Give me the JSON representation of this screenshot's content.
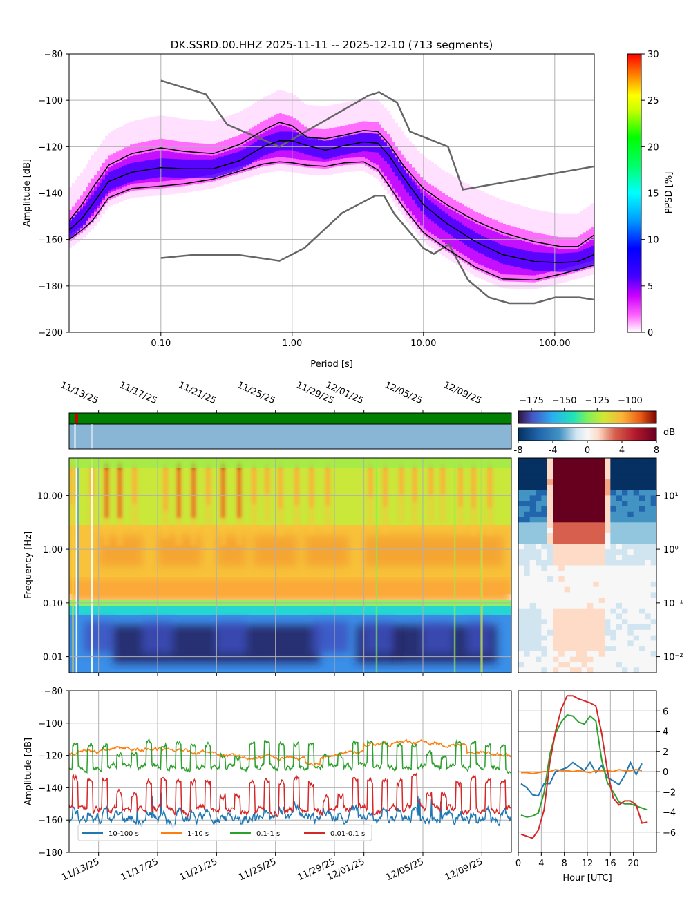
{
  "figure": {
    "title": "DK.SSRD.00.HHZ   2025-11-11 -- 2025-12-10  (713 segments)"
  },
  "chart_data": [
    {
      "id": "ppsd",
      "type": "heatmap",
      "title": "DK.SSRD.00.HHZ   2025-11-11 -- 2025-12-10  (713 segments)",
      "xlabel": "Period [s]",
      "ylabel": "Amplitude [dB]",
      "xscale": "log",
      "xlim": [
        0.02,
        200
      ],
      "ylim": [
        -200,
        -80
      ],
      "xticks": [
        0.1,
        1,
        10,
        100
      ],
      "xticklabels": [
        "0.10",
        "1.00",
        "10.00",
        "100.00"
      ],
      "yticks": [
        -200,
        -180,
        -160,
        -140,
        -120,
        -100,
        -80
      ],
      "yticklabels": [
        "−200",
        "−180",
        "−160",
        "−140",
        "−120",
        "−100",
        "−80"
      ],
      "grid": true,
      "colorbar": {
        "label": "PPSD [%]",
        "range": [
          0,
          30
        ],
        "ticks": [
          0,
          5,
          10,
          15,
          20,
          25,
          30
        ],
        "ticklabels": [
          "0",
          "5",
          "10",
          "15",
          "20",
          "25",
          "30"
        ]
      },
      "curves": {
        "nhnm": {
          "x": [
            0.1,
            0.22,
            0.32,
            0.8,
            3.8,
            4.6,
            6.3,
            7.9,
            15.4,
            20,
            354
          ],
          "y": [
            -91.5,
            -97.4,
            -110.5,
            -120,
            -98,
            -96.5,
            -101,
            -113.5,
            -120,
            -138.5,
            -126
          ]
        },
        "nlnm": {
          "x": [
            0.1,
            0.17,
            0.4,
            0.8,
            1.24,
            2.4,
            4.3,
            5,
            6,
            10,
            12,
            15.6,
            21.9,
            31.6,
            45,
            70,
            101,
            154,
            200
          ],
          "y": [
            -168,
            -166.7,
            -166.7,
            -169.2,
            -163.7,
            -148.6,
            -141.1,
            -141.1,
            -149,
            -163.8,
            -166.2,
            -162.1,
            -177.5,
            -185,
            -187.5,
            -187.5,
            -185,
            -185,
            -186
          ]
        },
        "p90": {
          "x": [
            0.02,
            0.025,
            0.03,
            0.04,
            0.06,
            0.1,
            0.15,
            0.25,
            0.4,
            0.6,
            0.8,
            1.0,
            1.3,
            1.8,
            2.5,
            3.5,
            4.5,
            5.5,
            7,
            10,
            15,
            25,
            40,
            70,
            110,
            150,
            200
          ],
          "y": [
            -152,
            -145,
            -138,
            -128,
            -123,
            -120.5,
            -122,
            -123,
            -119,
            -113,
            -109.5,
            -111,
            -116,
            -116.5,
            -115,
            -113,
            -113.5,
            -119,
            -128,
            -138,
            -145,
            -152,
            -157,
            -161,
            -163,
            -163,
            -158
          ]
        },
        "mean": {
          "x": [
            0.02,
            0.025,
            0.03,
            0.04,
            0.06,
            0.1,
            0.15,
            0.25,
            0.4,
            0.6,
            0.8,
            1.0,
            1.3,
            1.8,
            2.5,
            3.5,
            4.5,
            5.5,
            7,
            10,
            15,
            25,
            40,
            70,
            110,
            150,
            200
          ],
          "y": [
            -156,
            -151,
            -145,
            -135,
            -131,
            -129,
            -129.5,
            -129.5,
            -126,
            -120,
            -117.5,
            -117.5,
            -119.5,
            -121.5,
            -119.5,
            -118,
            -118.5,
            -124,
            -133,
            -145,
            -153,
            -161,
            -166.5,
            -169.5,
            -170,
            -169.5,
            -166.5
          ]
        },
        "p10": {
          "x": [
            0.02,
            0.025,
            0.03,
            0.04,
            0.06,
            0.1,
            0.15,
            0.25,
            0.4,
            0.6,
            0.8,
            1.0,
            1.3,
            1.8,
            2.5,
            3.5,
            4.5,
            5.5,
            7,
            10,
            15,
            25,
            40,
            70,
            110,
            150,
            200
          ],
          "y": [
            -160,
            -156,
            -152,
            -142,
            -138,
            -137,
            -136,
            -134,
            -130.5,
            -127.5,
            -126.5,
            -127,
            -128,
            -128.5,
            -127,
            -126.5,
            -130,
            -137,
            -146,
            -157,
            -164,
            -172,
            -177,
            -177.5,
            -175,
            -173,
            -171
          ]
        }
      }
    },
    {
      "id": "spectrogram",
      "type": "heatmap",
      "ylabel": "Frequency [Hz]",
      "yscale": "log",
      "ylim": [
        0.005,
        50
      ],
      "yticks": [
        10,
        1,
        0.1,
        0.01
      ],
      "yticklabels": [
        "10.00",
        "1.00",
        "0.10",
        "0.01"
      ],
      "time_range": [
        "2025-11-11",
        "2025-12-10"
      ],
      "date_ticks": [
        "11/13/25",
        "11/17/25",
        "11/21/25",
        "11/25/25",
        "11/29/25",
        "12/01/25",
        "12/05/25",
        "12/09/25"
      ],
      "date_tick_days": [
        2,
        6,
        10,
        14,
        18,
        20,
        24,
        28
      ],
      "colorbar": {
        "range": [
          -185,
          -80
        ],
        "ticks": [
          -175,
          -150,
          -125,
          -100
        ],
        "ticklabels": [
          "−175",
          "−150",
          "−125",
          "−100"
        ]
      },
      "data_availability": {
        "available": "#008000",
        "gap": "#cc0000",
        "gaps_days": [
          0.5
        ]
      },
      "segments": {
        "fill": "#8ab6d6",
        "gap_lines_days": [
          0.4,
          1.5
        ]
      }
    },
    {
      "id": "diurnal_diff",
      "type": "heatmap",
      "xlabel": "Hour [UTC]",
      "yscale": "log",
      "xlim": [
        0,
        23
      ],
      "xticks": [
        0,
        4,
        8,
        12,
        16,
        20
      ],
      "xticklabels": [
        "0",
        "4",
        "8",
        "12",
        "16",
        "20"
      ],
      "yticks": [
        10,
        1,
        0.1,
        0.01
      ],
      "yticklabels": [
        "10¹",
        "10⁰",
        "10⁻¹",
        "10⁻²"
      ],
      "colorbar": {
        "label": "dB",
        "range": [
          -8,
          8
        ],
        "ticks": [
          -8,
          -4,
          0,
          4,
          8
        ],
        "ticklabels": [
          "-8",
          "-4",
          "0",
          "4",
          "8"
        ]
      }
    },
    {
      "id": "band_timeseries",
      "type": "line",
      "ylabel": "Amplitude [dB]",
      "ylim": [
        -180,
        -80
      ],
      "yticks": [
        -180,
        -160,
        -140,
        -120,
        -100,
        -80
      ],
      "yticklabels": [
        "−180",
        "−160",
        "−140",
        "−120",
        "−100",
        "−80"
      ],
      "xticklabels": [
        "11/13/25",
        "11/17/25",
        "11/21/25",
        "11/25/25",
        "11/29/25",
        "12/01/25",
        "12/05/25",
        "12/09/25"
      ],
      "xtick_days": [
        2,
        6,
        10,
        14,
        18,
        20,
        24,
        28
      ],
      "xlim_days": [
        0,
        30
      ],
      "grid": true,
      "series": [
        {
          "name": "10-100 s",
          "color": "#1f77b4",
          "base": -158,
          "day_amp": 2,
          "noise": 4
        },
        {
          "name": "1-10 s",
          "color": "#ff7f0e",
          "base": -119,
          "day_amp": 0,
          "noise": 1.5
        },
        {
          "name": "0.1-1 s",
          "color": "#2ca02c",
          "base": -124,
          "day_amp": 7,
          "noise": 2.5
        },
        {
          "name": "0.01-0.1 s",
          "color": "#d62728",
          "base": -150,
          "day_amp": 9,
          "noise": 3
        }
      ],
      "legend": [
        "10-100 s",
        "1-10 s",
        "0.1-1 s",
        "0.01-0.1 s"
      ]
    },
    {
      "id": "diurnal_bands",
      "type": "line",
      "xlabel": "Hour [UTC]",
      "xlim": [
        0,
        23
      ],
      "ylim": [
        -8,
        8
      ],
      "xticks": [
        0,
        4,
        8,
        12,
        16,
        20
      ],
      "xticklabels": [
        "0",
        "4",
        "8",
        "12",
        "16",
        "20"
      ],
      "yticks": [
        6,
        4,
        2,
        0,
        -2,
        -4,
        -6
      ],
      "yticklabels": [
        "6",
        "4",
        "2",
        "0",
        "−2",
        "−4",
        "−6"
      ],
      "grid": true,
      "x": [
        0,
        1,
        2,
        3,
        4,
        5,
        6,
        7,
        8,
        9,
        10,
        11,
        12,
        13,
        14,
        15,
        16,
        17,
        18,
        19,
        20,
        21,
        22
      ],
      "series": [
        {
          "name": "10-100 s",
          "color": "#1f77b4",
          "values": [
            -1.2,
            -1.6,
            -2.3,
            -2.4,
            -1.2,
            -1.2,
            0.0,
            0.2,
            0.4,
            0.9,
            0.5,
            0.1,
            0.9,
            -0.1,
            0.6,
            -0.6,
            -0.9,
            -1.3,
            -0.4,
            0.9,
            -0.3,
            0.8,
            null
          ]
        },
        {
          "name": "1-10 s",
          "color": "#ff7f0e",
          "values": [
            -0.1,
            -0.1,
            -0.2,
            -0.1,
            0.0,
            0.0,
            0.2,
            0.1,
            0.1,
            0.0,
            0.1,
            0.0,
            -0.1,
            0.1,
            0.1,
            0.1,
            0.0,
            0.2,
            0.1,
            0.1,
            0.2,
            0.1,
            null
          ]
        },
        {
          "name": "0.1-1 s",
          "color": "#2ca02c",
          "values": [
            -4.3,
            -4.5,
            -4.4,
            -4.1,
            -2.1,
            1.7,
            3.8,
            4.9,
            5.6,
            5.5,
            4.9,
            4.7,
            5.5,
            5.0,
            1.2,
            -1.1,
            -2.0,
            -3.0,
            -3.2,
            -3.2,
            -3.4,
            -3.6,
            -3.8
          ]
        },
        {
          "name": "0.01-0.1 s",
          "color": "#d62728",
          "values": [
            -6.2,
            -6.4,
            -6.6,
            -5.8,
            -3.8,
            0.9,
            4.0,
            6.2,
            7.5,
            7.5,
            7.2,
            7.0,
            6.8,
            6.5,
            3.8,
            0.1,
            -2.6,
            -3.3,
            -2.9,
            -2.9,
            -3.3,
            -5.1,
            -5.0
          ]
        }
      ]
    }
  ]
}
